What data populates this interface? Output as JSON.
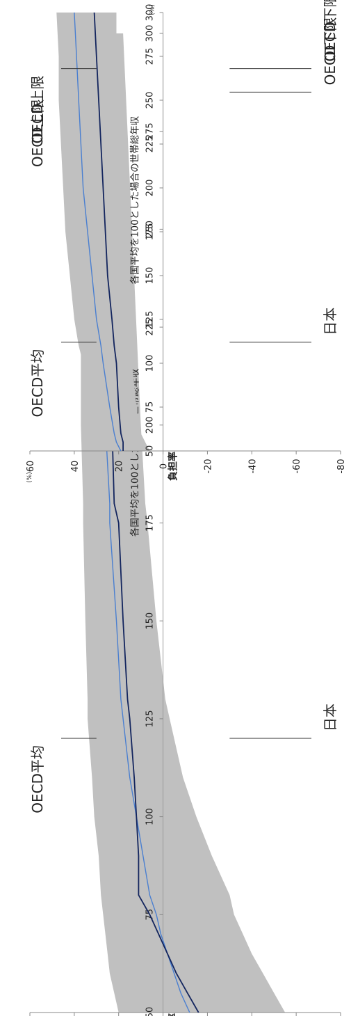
{
  "chart_data": [
    {
      "type": "area",
      "x": [
        50,
        55,
        60,
        65,
        70,
        75,
        80,
        90,
        100,
        110,
        125,
        130,
        150,
        175,
        180,
        200,
        225,
        250,
        275,
        300
      ],
      "xlabel": "各国平均を100とした場合の世帯総年収",
      "x_unit": "(%)",
      "ylabel": "負担率",
      "y_unit": "(%)",
      "xlim": [
        50,
        300
      ],
      "ylim": [
        -80,
        60
      ],
      "x_ticks": [
        "50",
        "75",
        "100",
        "125",
        "150",
        "175",
        "200",
        "225",
        "250",
        "275",
        "300"
      ],
      "y_ticks": [
        "-80",
        "-60",
        "-40",
        "-20",
        "0",
        "20",
        "40",
        "60"
      ],
      "series": [
        {
          "name": "OECD上限",
          "values": [
            20,
            22,
            24,
            25,
            26,
            27,
            28,
            29,
            31,
            32,
            34,
            34,
            35,
            36,
            36,
            37,
            37,
            38,
            38,
            39
          ]
        },
        {
          "name": "OECD下限",
          "values": [
            -55,
            -50,
            -45,
            -40,
            -36,
            -32,
            -30,
            -22,
            -15,
            -9,
            -3,
            -1,
            3,
            7,
            8,
            10,
            12,
            14,
            16,
            18
          ]
        },
        {
          "name": "OECD平均",
          "values": [
            -12,
            -8,
            -5,
            -2,
            1,
            3,
            6,
            9,
            12,
            15,
            18,
            19,
            21,
            24,
            24,
            26,
            27,
            28,
            29,
            30
          ]
        },
        {
          "name": "日本",
          "values": [
            -16,
            -11,
            -6,
            -2,
            2,
            6,
            11,
            11,
            12,
            13,
            15,
            16,
            18,
            20,
            22,
            23,
            24,
            25,
            26,
            27
          ]
        }
      ],
      "annotations": [
        {
          "text": "OECD上限",
          "x": 285
        },
        {
          "text": "OECD平均",
          "x": 120
        },
        {
          "text": "OECD下限",
          "x": 285
        },
        {
          "text": "日本",
          "x": 120
        }
      ]
    },
    {
      "type": "area",
      "x": [
        50,
        55,
        60,
        75,
        100,
        110,
        125,
        150,
        175,
        200,
        225,
        250,
        275,
        300
      ],
      "xlabel": "各国平均を100とした場合の世帯総年収",
      "x_unit": "(%)",
      "ylabel": "負担率",
      "y_unit": "(%)",
      "xlim": [
        50,
        300
      ],
      "ylim": [
        -80,
        60
      ],
      "x_ticks": [
        "50",
        "75",
        "100",
        "125",
        "150",
        "175",
        "200",
        "225",
        "250",
        "275",
        "300"
      ],
      "y_ticks": [
        "-80",
        "-60",
        "-40",
        "-20",
        "0",
        "20",
        "40",
        "60"
      ],
      "series": [
        {
          "name": "OECD上限",
          "values": [
            34,
            34,
            34,
            34,
            36,
            38,
            40,
            42,
            44,
            45,
            46,
            47,
            47,
            48
          ]
        },
        {
          "name": "OECD下限",
          "values": [
            6,
            8,
            10,
            12,
            14,
            15,
            16,
            17,
            18,
            19,
            20,
            20,
            21,
            21
          ]
        },
        {
          "name": "OECD平均",
          "values": [
            19,
            21,
            22,
            24,
            27,
            28,
            30,
            32,
            34,
            36,
            37,
            38,
            39,
            40
          ]
        },
        {
          "name": "日本",
          "values": [
            18,
            18,
            19,
            20,
            21,
            22,
            23,
            25,
            26,
            27,
            28,
            29,
            30,
            31
          ]
        }
      ],
      "annotations": [
        {
          "text": "OECD上限",
          "x": 268
        },
        {
          "text": "OECD平均",
          "x": 112
        },
        {
          "text": "OECD下限",
          "x": 268
        },
        {
          "text": "日本",
          "x": 112
        }
      ]
    }
  ]
}
